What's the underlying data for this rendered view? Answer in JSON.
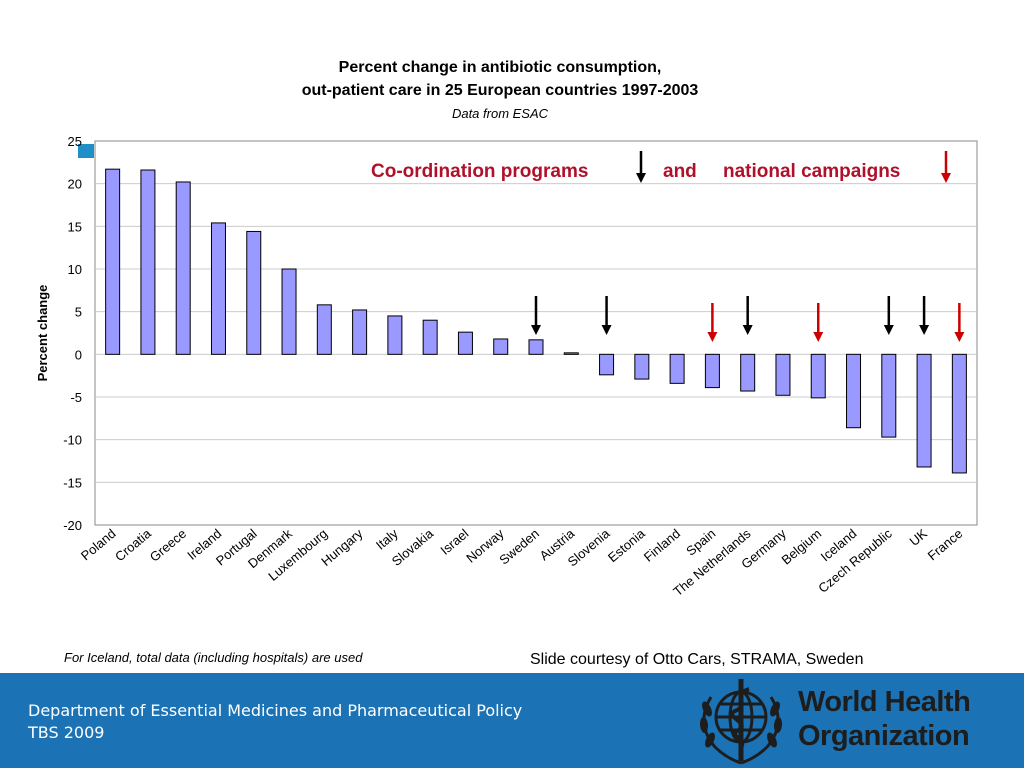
{
  "title": {
    "line1": "Percent change in antibiotic consumption,",
    "line2": "out-patient care in 25 European countries 1997-2003",
    "subtitle": "Data from ESAC"
  },
  "annotations": {
    "coordination": "Co-ordination programs",
    "and": "and",
    "campaigns": "national campaigns"
  },
  "chart_data": {
    "type": "bar",
    "title": "Percent change in antibiotic consumption, out-patient care in 25 European countries 1997-2003",
    "subtitle": "Data from ESAC",
    "xlabel": "",
    "ylabel": "Percent change",
    "ylim": [
      -20,
      25
    ],
    "yticks": [
      25,
      20,
      15,
      10,
      5,
      0,
      -5,
      -10,
      -15,
      -20
    ],
    "grid": true,
    "bar_color": "#9999ff",
    "categories": [
      "Poland",
      "Croatia",
      "Greece",
      "Ireland",
      "Portugal",
      "Denmark",
      "Luxembourg",
      "Hungary",
      "Italy",
      "Slovakia",
      "Israel",
      "Norway",
      "Sweden",
      "Austria",
      "Slovenia",
      "Estonia",
      "Finland",
      "Spain",
      "The Netherlands",
      "Germany",
      "Belgium",
      "Iceland",
      "Czech Republic",
      "UK",
      "France"
    ],
    "values": [
      21.7,
      21.6,
      20.2,
      15.4,
      14.4,
      10.0,
      5.8,
      5.2,
      4.5,
      4.0,
      2.6,
      1.8,
      1.7,
      0.1,
      -2.4,
      -2.9,
      -3.4,
      -3.9,
      -4.3,
      -4.8,
      -5.1,
      -8.6,
      -9.7,
      -13.2,
      -13.9
    ],
    "markers": {
      "coordination_programs": [
        "Sweden",
        "Slovenia",
        "The Netherlands",
        "Czech Republic",
        "UK"
      ],
      "national_campaigns": [
        "Spain",
        "Belgium",
        "France"
      ]
    },
    "marker_colors": {
      "coordination_programs": "#000000",
      "national_campaigns": "#cc0000"
    }
  },
  "footnote": "For Iceland, total data (including hospitals) are used",
  "credit": "Slide courtesy of Otto Cars, STRAMA, Sweden",
  "footer": {
    "line1": "Department of Essential Medicines and Pharmaceutical Policy",
    "line2": "TBS 2009",
    "logo_line1": "World Health",
    "logo_line2": "Organization",
    "background": "#1b73b5"
  }
}
